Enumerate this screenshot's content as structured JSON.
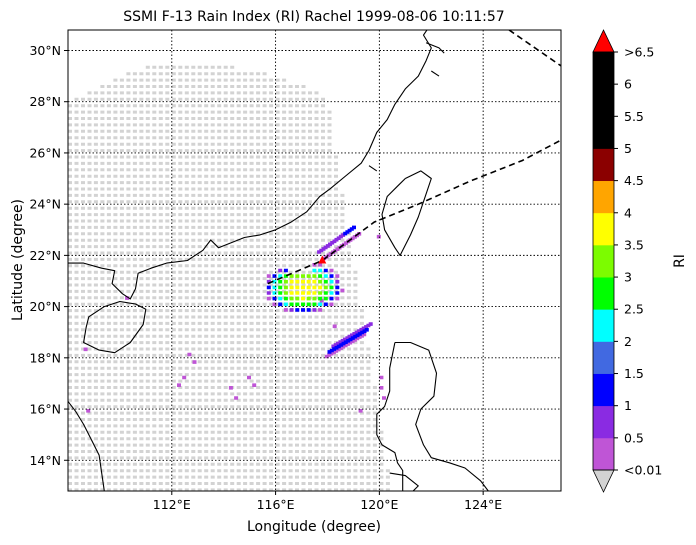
{
  "title": "SSMI F-13 Rain Index (RI) Rachel 1999-08-06 10:11:57",
  "xlabel": "Longitude (degree)",
  "ylabel": "Latitude (degree)",
  "colorbar_label": "RI",
  "lon_range": [
    108.0,
    127.0
  ],
  "lat_range": [
    12.8,
    30.8
  ],
  "lon_ticks": [
    {
      "value": 112,
      "label": "112°E"
    },
    {
      "value": 116,
      "label": "116°E"
    },
    {
      "value": 120,
      "label": "120°E"
    },
    {
      "value": 124,
      "label": "124°E"
    }
  ],
  "lat_ticks": [
    {
      "value": 14,
      "label": "14°N"
    },
    {
      "value": 16,
      "label": "16°N"
    },
    {
      "value": 18,
      "label": "18°N"
    },
    {
      "value": 20,
      "label": "20°N"
    },
    {
      "value": 22,
      "label": "22°N"
    },
    {
      "value": 24,
      "label": "24°N"
    },
    {
      "value": 26,
      "label": "26°N"
    },
    {
      "value": 28,
      "label": "28°N"
    },
    {
      "value": 30,
      "label": "30°N"
    }
  ],
  "colorbar": {
    "boundaries": [
      0.01,
      0.5,
      1,
      1.5,
      2,
      2.5,
      3,
      3.5,
      4,
      4.5,
      5,
      5.5,
      6,
      6.5
    ],
    "tick_labels": [
      "<0.01",
      "0.5",
      "1",
      "1.5",
      "2",
      "2.5",
      "3",
      "3.5",
      "4",
      "4.5",
      "5",
      "5.5",
      "6",
      ">6.5"
    ],
    "colors": [
      "#bf55d6",
      "#8a2be2",
      "#0000ff",
      "#4169e1",
      "#00ffff",
      "#00ff00",
      "#7cfc00",
      "#ffff00",
      "#ffa500",
      "#8b0000",
      "#000000",
      "#000000",
      "#000000"
    ],
    "under_color": "#d3d3d3",
    "over_color": "#ff0000"
  },
  "chart_data": {
    "type": "heatmap",
    "title": "SSMI F-13 Rain Index (RI) Rachel 1999-08-06 10:11:57",
    "xlabel": "Longitude (degree)",
    "ylabel": "Latitude (degree)",
    "xlim": [
      108.0,
      127.0
    ],
    "ylim": [
      12.8,
      30.8
    ],
    "swath": {
      "description": "no-rain pixels (<0.01) shown in light gray",
      "west_edge_lon": 108.0,
      "northwest_corner": [
        108.0,
        28.0
      ],
      "north_edge_apex": [
        112.3,
        29.5
      ],
      "northeast_corner": [
        117.9,
        28.2
      ],
      "east_edge_top": [
        117.9,
        28.2
      ],
      "east_edge_bottom": [
        120.4,
        12.8
      ]
    },
    "rain_clusters": [
      {
        "name": "core",
        "center": [
          117.0,
          20.7
        ],
        "ri_max": 3.5
      },
      {
        "name": "band_north",
        "center": [
          118.4,
          22.9
        ],
        "ri_max": 1.5
      },
      {
        "name": "band_east",
        "center": [
          119.0,
          18.6
        ],
        "ri_max": 1.5
      }
    ],
    "track": [
      [
        115.7,
        20.9
      ],
      [
        117.8,
        21.8
      ],
      [
        119.8,
        23.3
      ],
      [
        121.5,
        24.0
      ],
      [
        123.5,
        24.9
      ],
      [
        125.5,
        25.7
      ],
      [
        127.0,
        26.5
      ]
    ],
    "track_north": [
      [
        125.0,
        30.8
      ],
      [
        127.0,
        29.4
      ]
    ],
    "storm_position": [
      117.8,
      21.8
    ]
  }
}
